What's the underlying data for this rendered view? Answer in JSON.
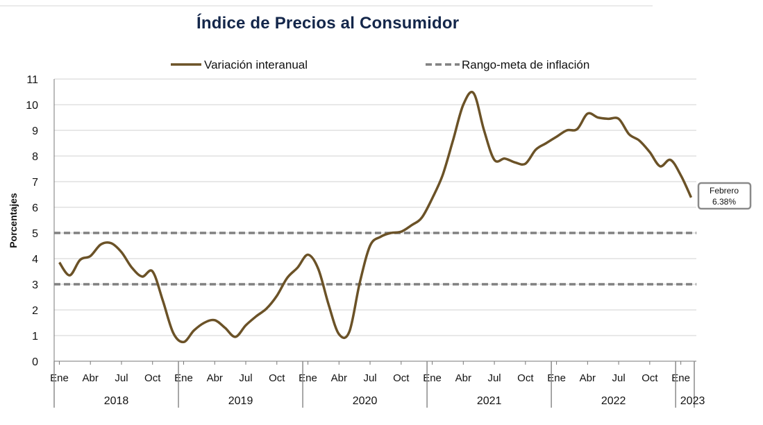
{
  "chart_data": {
    "type": "line",
    "title": "Índice de Precios al Consumidor",
    "ylabel": "Porcentajes",
    "xlabel": "",
    "ylim": [
      0,
      11
    ],
    "yticks": [
      0,
      1,
      2,
      3,
      4,
      5,
      6,
      7,
      8,
      9,
      10,
      11
    ],
    "grid": true,
    "legend": "top",
    "month_tick_labels": [
      "Ene",
      "Abr",
      "Jul",
      "Oct"
    ],
    "x_month_ticks": [
      "Ene",
      "Abr",
      "Jul",
      "Oct",
      "Ene",
      "Abr",
      "Jul",
      "Oct",
      "Ene",
      "Abr",
      "Jul",
      "Oct",
      "Ene",
      "Abr",
      "Jul",
      "Oct",
      "Ene",
      "Abr",
      "Jul",
      "Oct",
      "Ene"
    ],
    "years": [
      "2018",
      "2019",
      "2020",
      "2021",
      "2022",
      "2023"
    ],
    "series": [
      {
        "name": "Variación interanual",
        "color": "#6b5227",
        "style": "solid",
        "x": [
          "2018-01",
          "2018-02",
          "2018-03",
          "2018-04",
          "2018-05",
          "2018-06",
          "2018-07",
          "2018-08",
          "2018-09",
          "2018-10",
          "2018-11",
          "2018-12",
          "2019-01",
          "2019-02",
          "2019-03",
          "2019-04",
          "2019-05",
          "2019-06",
          "2019-07",
          "2019-08",
          "2019-09",
          "2019-10",
          "2019-11",
          "2019-12",
          "2020-01",
          "2020-02",
          "2020-03",
          "2020-04",
          "2020-05",
          "2020-06",
          "2020-07",
          "2020-08",
          "2020-09",
          "2020-10",
          "2020-11",
          "2020-12",
          "2021-01",
          "2021-02",
          "2021-03",
          "2021-04",
          "2021-05",
          "2021-06",
          "2021-07",
          "2021-08",
          "2021-09",
          "2021-10",
          "2021-11",
          "2021-12",
          "2022-01",
          "2022-02",
          "2022-03",
          "2022-04",
          "2022-05",
          "2022-06",
          "2022-07",
          "2022-08",
          "2022-09",
          "2022-10",
          "2022-11",
          "2022-12",
          "2023-01",
          "2023-02"
        ],
        "values": [
          3.85,
          3.35,
          3.95,
          4.1,
          4.55,
          4.6,
          4.25,
          3.65,
          3.3,
          3.5,
          2.35,
          1.1,
          0.75,
          1.2,
          1.5,
          1.6,
          1.3,
          0.95,
          1.4,
          1.75,
          2.05,
          2.55,
          3.25,
          3.65,
          4.15,
          3.6,
          2.2,
          1.05,
          1.15,
          3.05,
          4.5,
          4.85,
          5.0,
          5.05,
          5.3,
          5.6,
          6.35,
          7.25,
          8.6,
          10.0,
          10.45,
          9.0,
          7.85,
          7.9,
          7.75,
          7.7,
          8.25,
          8.5,
          8.75,
          9.0,
          9.05,
          9.65,
          9.5,
          9.45,
          9.45,
          8.85,
          8.6,
          8.15,
          7.6,
          7.85,
          7.25,
          6.38
        ]
      },
      {
        "name": "Rango-meta de inflación",
        "color": "#808080",
        "style": "dashed",
        "upper": 5,
        "lower": 3
      }
    ],
    "annotations": [
      {
        "text_line1": "Febrero",
        "text_line2": "6.38%",
        "x": "2023-02",
        "y": 6.38
      }
    ]
  }
}
